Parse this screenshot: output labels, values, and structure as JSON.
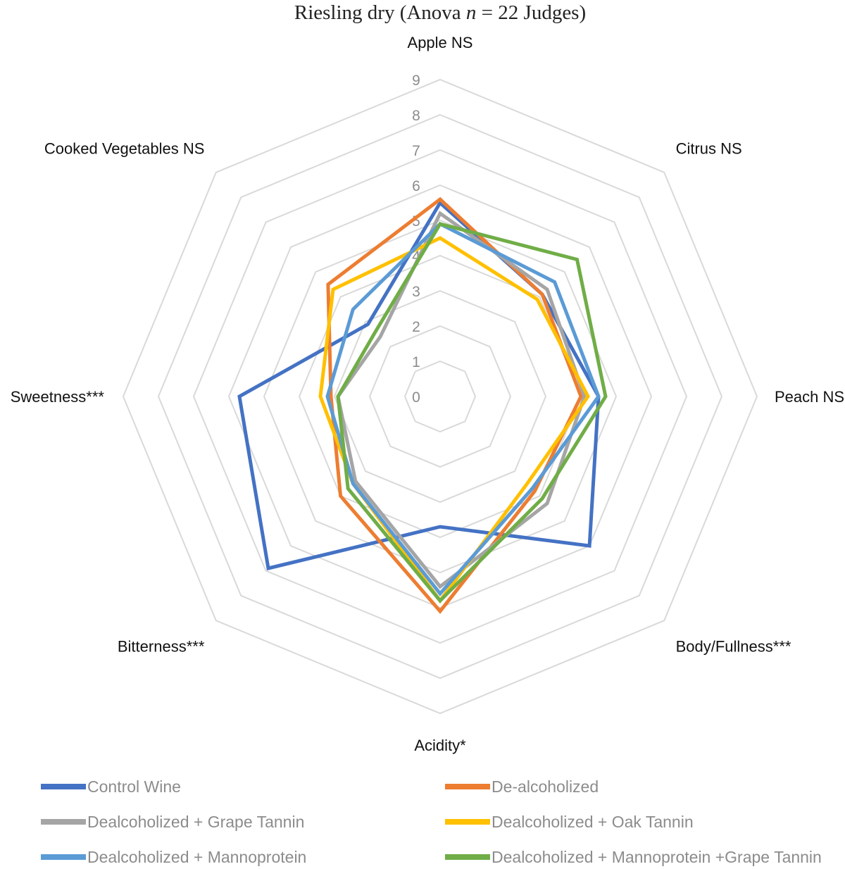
{
  "chart_data": {
    "type": "radar",
    "title_parts": [
      "Riesling dry (Anova ",
      "n",
      " = 22 Judges)"
    ],
    "axes": [
      "Apple NS",
      "Citrus NS",
      "Peach NS",
      "Body/Fullness***",
      "Acidity*",
      "Bitterness***",
      "Sweetness***",
      "Cooked Vegetables NS"
    ],
    "ticks": [
      0,
      1,
      2,
      3,
      4,
      5,
      6,
      7,
      8,
      9
    ],
    "range": [
      0,
      9
    ],
    "grid": true,
    "legend_position": "bottom",
    "series": [
      {
        "name": "Control Wine",
        "color": "#4472C4",
        "values": [
          5.5,
          4.1,
          4.5,
          6.0,
          3.7,
          6.9,
          5.7,
          2.9
        ]
      },
      {
        "name": "De-alcoholized",
        "color": "#ED7D31",
        "values": [
          5.6,
          4.1,
          4.0,
          3.8,
          6.1,
          4.0,
          3.1,
          4.5
        ]
      },
      {
        "name": "Dealcoholized + Grape Tannin",
        "color": "#A5A5A5",
        "values": [
          5.2,
          4.3,
          4.1,
          4.3,
          5.4,
          3.4,
          2.9,
          2.4
        ]
      },
      {
        "name": "Dealcoholized + Oak Tannin",
        "color": "#FFC000",
        "values": [
          4.5,
          3.9,
          4.2,
          3.5,
          5.8,
          3.5,
          3.4,
          4.3
        ]
      },
      {
        "name": "Dealcoholized + Mannoprotein",
        "color": "#5B9BD5",
        "values": [
          4.9,
          4.6,
          4.5,
          3.7,
          5.6,
          3.5,
          3.2,
          3.5
        ]
      },
      {
        "name": "Dealcoholized + Mannoprotein +Grape Tannin",
        "color": "#70AD47",
        "values": [
          4.9,
          5.5,
          4.7,
          4.1,
          5.8,
          3.7,
          2.9,
          2.6
        ]
      }
    ]
  }
}
